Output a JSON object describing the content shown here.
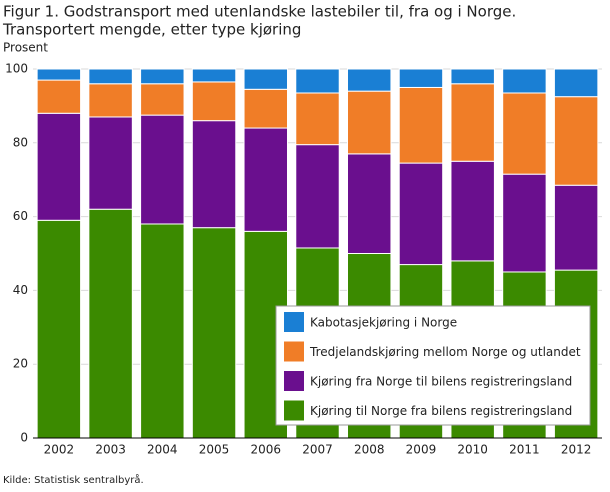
{
  "chart_data": {
    "type": "stacked_bar",
    "title": "Figur 1. Godstransport med utenlandske lastebiler til, fra og i Norge.",
    "subtitle": "Transportert mengde, etter type kjøring",
    "y_label": "Prosent",
    "source": "Kilde: Statistisk sentralbyrå.",
    "categories": [
      "2002",
      "2003",
      "2004",
      "2005",
      "2006",
      "2007",
      "2008",
      "2009",
      "2010",
      "2011",
      "2012"
    ],
    "series": [
      {
        "name": "Kjøring til Norge fra bilens registreringsland",
        "color": "#3b8a00",
        "values": [
          59,
          62,
          58,
          57,
          56,
          51.5,
          50,
          47,
          48,
          45,
          45.5
        ]
      },
      {
        "name": "Kjøring fra Norge til bilens registreringsland",
        "color": "#6a0f8e",
        "values": [
          29,
          25,
          29.5,
          29,
          28,
          28,
          27,
          27.5,
          27,
          26.5,
          23
        ]
      },
      {
        "name": "Tredjelandskjøring mellom Norge og utlandet",
        "color": "#f07d27",
        "values": [
          9,
          9,
          8.5,
          10.5,
          10.5,
          14,
          17,
          20.5,
          21,
          22,
          24
        ]
      },
      {
        "name": "Kabotasjekjøring i Norge",
        "color": "#1a7fd4",
        "values": [
          3,
          4,
          4,
          3.5,
          5.5,
          6.5,
          6,
          5,
          4,
          6.5,
          7.5
        ]
      }
    ],
    "ylim": [
      0,
      100
    ],
    "yticks": [
      0,
      20,
      40,
      60,
      80,
      100
    ],
    "grid": true,
    "legend": "lower right"
  }
}
